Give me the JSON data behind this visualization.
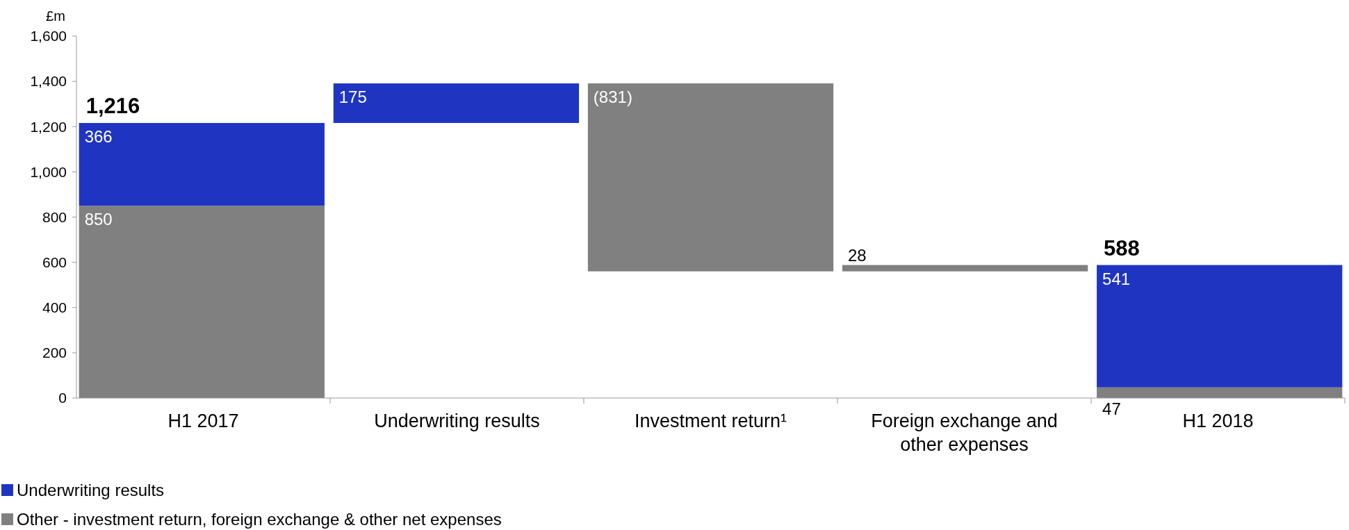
{
  "chart_data": {
    "type": "bar",
    "ylabel": "£m",
    "categories": [
      "H1 2017",
      "Underwriting results",
      "Investment return¹",
      "Foreign exchange and other expenses",
      "H1 2018"
    ],
    "series": [
      {
        "name": "Other - investment return, foreign exchange & other net expenses",
        "color": "#808080",
        "values": [
          850,
          null,
          -831,
          28,
          47
        ],
        "base": [
          0,
          null,
          1391,
          560,
          0
        ],
        "value_labels": [
          "850",
          null,
          "(831)",
          "28",
          "47"
        ]
      },
      {
        "name": "Underwriting results",
        "color": "#1f35c2",
        "values": [
          366,
          175,
          null,
          null,
          541
        ],
        "base": [
          850,
          1216,
          null,
          null,
          47
        ],
        "value_labels": [
          "366",
          "175",
          null,
          null,
          "541"
        ]
      }
    ],
    "totals": [
      "1,216",
      null,
      null,
      null,
      "588"
    ],
    "ylim": [
      0,
      1600
    ],
    "yticks": [
      {
        "value": 0,
        "label": "0"
      },
      {
        "value": 200,
        "label": "200"
      },
      {
        "value": 400,
        "label": "400"
      },
      {
        "value": 600,
        "label": "600"
      },
      {
        "value": 800,
        "label": "800"
      },
      {
        "value": 1000,
        "label": "1,000"
      },
      {
        "value": 1200,
        "label": "1,200"
      },
      {
        "value": 1400,
        "label": "1,400"
      },
      {
        "value": 1600,
        "label": "1,600"
      }
    ],
    "grid": false,
    "legend": "bottom left"
  }
}
